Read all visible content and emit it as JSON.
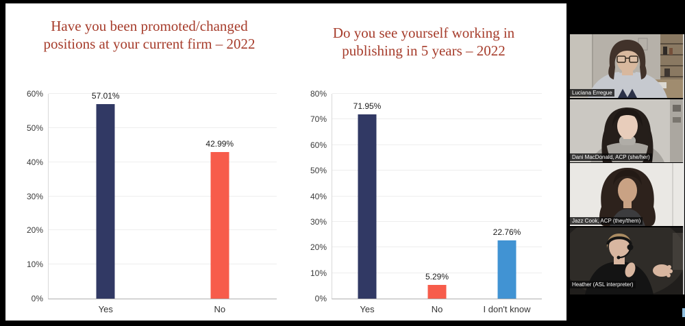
{
  "theme": {
    "title_color": "#a63c2b",
    "navy": "#313964",
    "coral": "#f75c4b",
    "blue": "#4193d3",
    "slide_bg": "#ffffff",
    "frame_bg": "#000000"
  },
  "chart_data": [
    {
      "type": "bar",
      "title": "Have you been promoted/changed positions at your current firm – 2022",
      "categories": [
        "Yes",
        "No"
      ],
      "values": [
        57.01,
        42.99
      ],
      "value_labels": [
        "57.01%",
        "42.99%"
      ],
      "bar_colors": [
        "#313964",
        "#f75c4b"
      ],
      "ylim": [
        0,
        60
      ],
      "yticks": [
        "0%",
        "10%",
        "20%",
        "30%",
        "40%",
        "50%",
        "60%"
      ],
      "grid": true,
      "legend": false
    },
    {
      "type": "bar",
      "title": "Do you see yourself working in publishing in 5 years – 2022",
      "categories": [
        "Yes",
        "No",
        "I don't know"
      ],
      "values": [
        71.95,
        5.29,
        22.76
      ],
      "value_labels": [
        "71.95%",
        "5.29%",
        "22.76%"
      ],
      "bar_colors": [
        "#313964",
        "#f75c4b",
        "#4193d3"
      ],
      "ylim": [
        0,
        80
      ],
      "yticks": [
        "0%",
        "10%",
        "20%",
        "30%",
        "40%",
        "50%",
        "60%",
        "70%",
        "80%"
      ],
      "grid": true,
      "legend": false
    }
  ],
  "sidebar": {
    "participants": [
      {
        "name": "Luciana Erregue"
      },
      {
        "name": "Dani MacDonald, ACP (she/her)"
      },
      {
        "name": "Jazz Cook, ACP (they/them)"
      },
      {
        "name": "Heather (ASL interpreter)"
      }
    ]
  }
}
